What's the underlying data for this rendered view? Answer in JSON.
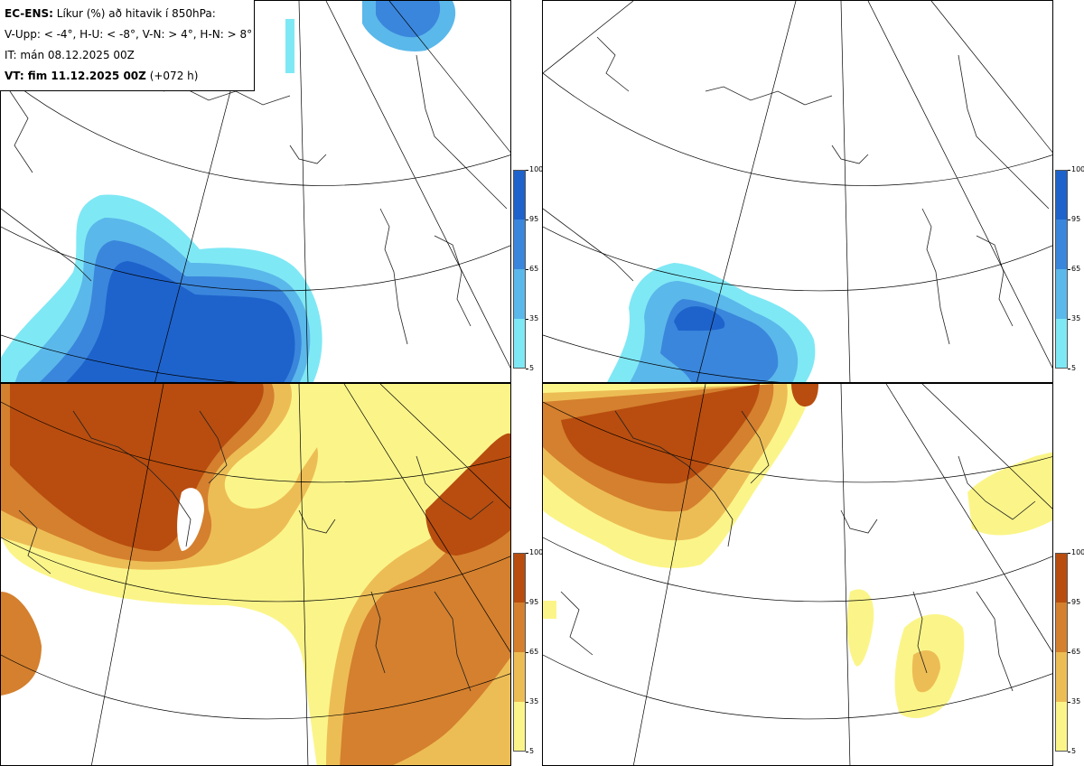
{
  "info": {
    "line1_bold": "EC-ENS:",
    "line1_rest": " Líkur (%) að hitavik í 850hPa:",
    "line2": "V-Upp: < -4°, H-U: < -8°, V-N: > 4°, H-N: > 8°",
    "line3": "IT: mán 08.12.2025 00Z",
    "line4_bold": "VT: fim 11.12.2025 00Z",
    "line4_rest": " (+072 h)"
  },
  "colorbar": {
    "ticks": [
      "100",
      "95",
      "65",
      "35",
      "5"
    ],
    "cold_colors": [
      "#1e63cc",
      "#3a86dc",
      "#5bb8ea",
      "#7fe8f5"
    ],
    "warm_colors": [
      "#b84d0f",
      "#d4802e",
      "#edbd55",
      "#fbf589"
    ]
  },
  "panels": [
    {
      "name": "V-Upp",
      "threshold": "< -4°",
      "scheme": "cold"
    },
    {
      "name": "H-U",
      "threshold": "< -8°",
      "scheme": "cold"
    },
    {
      "name": "V-N",
      "threshold": "> 4°",
      "scheme": "warm"
    },
    {
      "name": "H-N",
      "threshold": "> 8°",
      "scheme": "warm"
    }
  ]
}
